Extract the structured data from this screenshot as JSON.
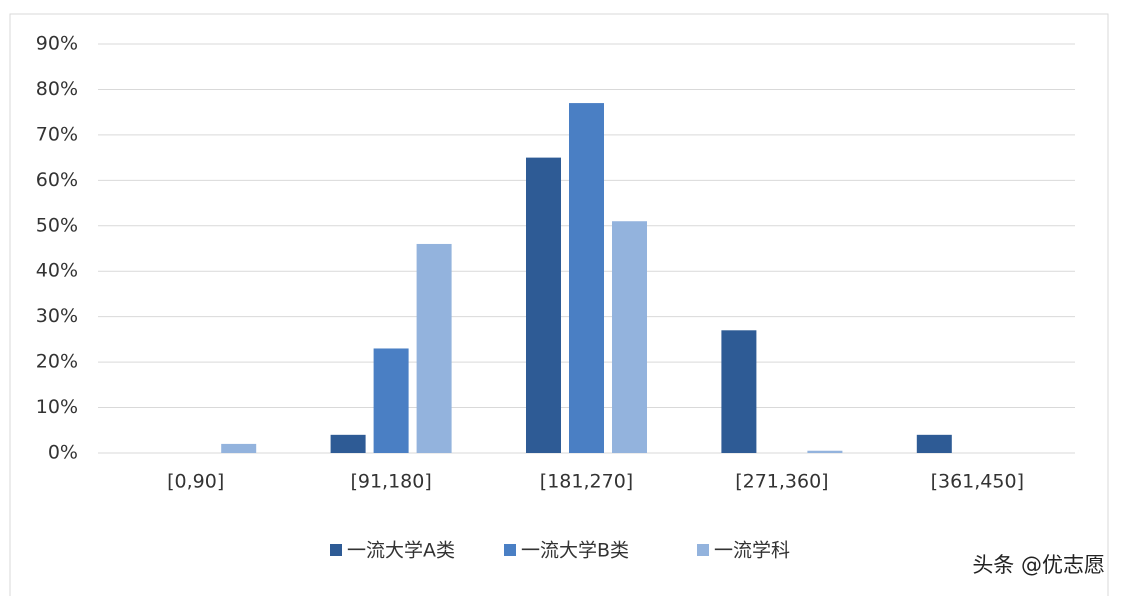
{
  "chart_data": {
    "type": "bar",
    "categories": [
      "[0,90]",
      "[91,180]",
      "[181,270]",
      "[271,360]",
      "[361,450]"
    ],
    "series": [
      {
        "name": "一流大学A类",
        "color": "#2e5b95",
        "values": [
          0,
          4,
          65,
          27,
          4
        ]
      },
      {
        "name": "一流大学B类",
        "color": "#4a7fc4",
        "values": [
          0,
          23,
          77,
          0,
          0
        ]
      },
      {
        "name": "一流学科",
        "color": "#93b3dd",
        "values": [
          2,
          46,
          51,
          0.5,
          0
        ]
      }
    ],
    "ylim": [
      0,
      90
    ],
    "yticks": [
      {
        "value": 0,
        "label": "0%"
      },
      {
        "value": 10,
        "label": "10%"
      },
      {
        "value": 20,
        "label": "20%"
      },
      {
        "value": 30,
        "label": "30%"
      },
      {
        "value": 40,
        "label": "40%"
      },
      {
        "value": 50,
        "label": "50%"
      },
      {
        "value": 60,
        "label": "60%"
      },
      {
        "value": 70,
        "label": "70%"
      },
      {
        "value": 80,
        "label": "80%"
      },
      {
        "value": 90,
        "label": "90%"
      }
    ],
    "grid": true,
    "legend": "bottom",
    "credit": "头条 @优志愿"
  }
}
